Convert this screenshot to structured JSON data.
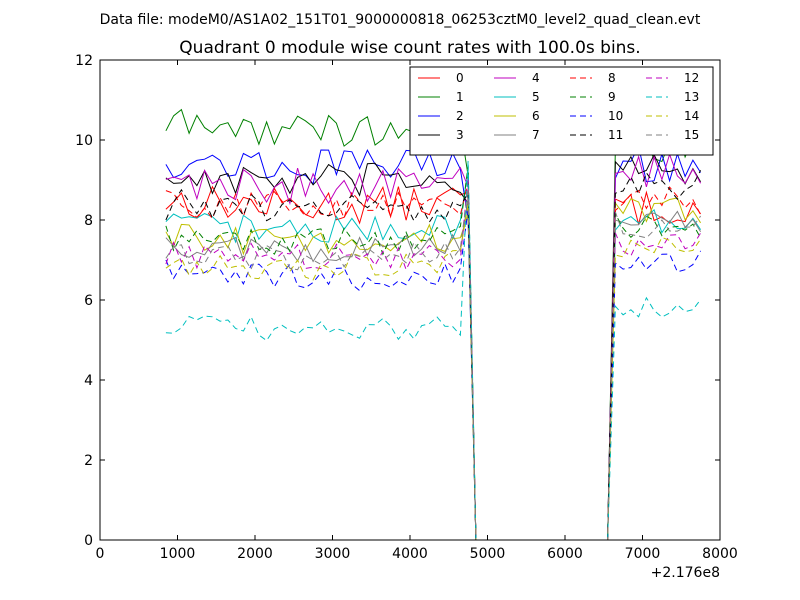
{
  "figure": {
    "suptitle": "Data file: modeM0/AS1A02_151T01_9000000818_06253cztM0_level2_quad_clean.evt"
  },
  "chart_data": {
    "type": "line",
    "title": "Quadrant 0 module wise count rates with 100.0s bins.",
    "xlabel": "",
    "ylabel": "",
    "x_offset_label": "+2.176e8",
    "xlim": [
      0,
      8000
    ],
    "ylim": [
      0,
      12
    ],
    "xticks": [
      "0",
      "1000",
      "2000",
      "3000",
      "4000",
      "5000",
      "6000",
      "7000",
      "8000"
    ],
    "yticks": [
      "0",
      "2",
      "4",
      "6",
      "8",
      "10",
      "12"
    ],
    "legend_position": "top-right",
    "legend_columns": 4,
    "segments": [
      {
        "start": 850,
        "count": 39,
        "step": 100
      },
      {
        "start": 4750,
        "count": 1,
        "step": 100
      },
      {
        "start": 4850,
        "count": 1,
        "step": 100
      },
      {
        "start": 6550,
        "count": 1,
        "step": 100
      },
      {
        "start": 6650,
        "count": 12,
        "step": 100
      }
    ],
    "series": [
      {
        "name": "0",
        "color": "#ff0000",
        "style": "solid",
        "levels": [
          8.5,
          8.3
        ],
        "amp": 0.45
      },
      {
        "name": "1",
        "color": "#008000",
        "style": "solid",
        "levels": [
          10.4,
          9.9
        ],
        "amp": 0.45
      },
      {
        "name": "2",
        "color": "#0000ff",
        "style": "solid",
        "levels": [
          9.5,
          9.4
        ],
        "amp": 0.45
      },
      {
        "name": "3",
        "color": "#000000",
        "style": "solid",
        "levels": [
          9.1,
          9.2
        ],
        "amp": 0.45
      },
      {
        "name": "4",
        "color": "#bf00bf",
        "style": "solid",
        "levels": [
          9.0,
          9.2
        ],
        "amp": 0.45
      },
      {
        "name": "5",
        "color": "#00bfbf",
        "style": "solid",
        "levels": [
          7.9,
          8.0
        ],
        "amp": 0.35
      },
      {
        "name": "6",
        "color": "#bfbf00",
        "style": "solid",
        "levels": [
          7.6,
          8.2
        ],
        "amp": 0.35
      },
      {
        "name": "7",
        "color": "#808080",
        "style": "solid",
        "levels": [
          7.4,
          8.0
        ],
        "amp": 0.35
      },
      {
        "name": "8",
        "color": "#ff0000",
        "style": "dashed",
        "levels": [
          8.5,
          8.5
        ],
        "amp": 0.4
      },
      {
        "name": "9",
        "color": "#008000",
        "style": "dashed",
        "levels": [
          7.6,
          7.9
        ],
        "amp": 0.35
      },
      {
        "name": "10",
        "color": "#0000ff",
        "style": "dashed",
        "levels": [
          6.7,
          6.9
        ],
        "amp": 0.35
      },
      {
        "name": "11",
        "color": "#000000",
        "style": "dashed",
        "levels": [
          8.4,
          8.9
        ],
        "amp": 0.4
      },
      {
        "name": "12",
        "color": "#bf00bf",
        "style": "dashed",
        "levels": [
          7.2,
          7.4
        ],
        "amp": 0.35
      },
      {
        "name": "13",
        "color": "#00bfbf",
        "style": "dashed",
        "levels": [
          5.4,
          5.8
        ],
        "amp": 0.3
      },
      {
        "name": "14",
        "color": "#bfbf00",
        "style": "dashed",
        "levels": [
          7.0,
          7.3
        ],
        "amp": 0.35
      },
      {
        "name": "15",
        "color": "#808080",
        "style": "dashed",
        "levels": [
          7.2,
          7.9
        ],
        "amp": 0.35
      }
    ]
  }
}
